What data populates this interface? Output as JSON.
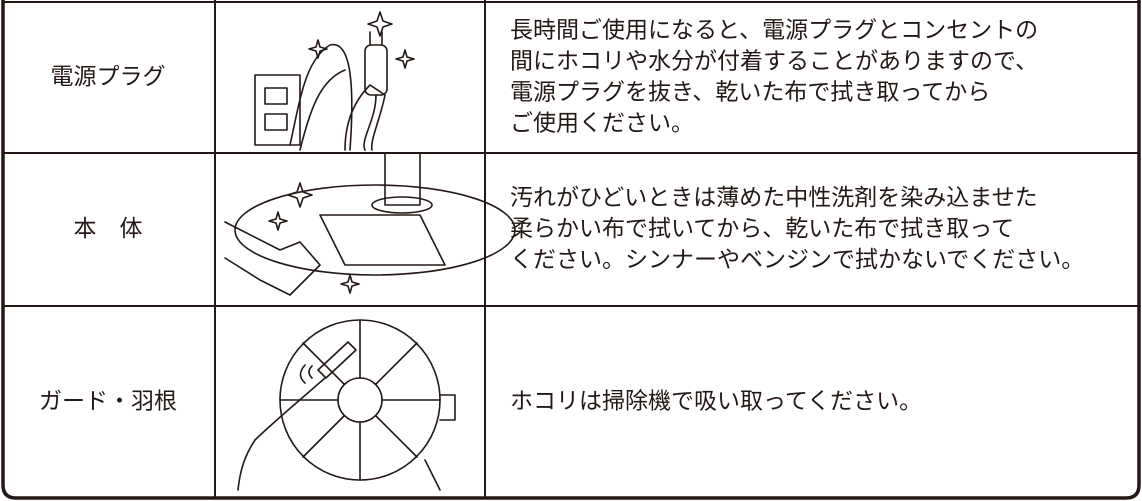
{
  "table": {
    "rows": [
      {
        "label": "電源プラグ",
        "lines": [
          "長時間ご使用になると、電源プラグとコンセントの",
          "間にホコリや水分が付着することがありますので、",
          "電源プラグを抜き、乾いた布で拭き取ってから",
          "ご使用ください。"
        ]
      },
      {
        "label": "本　体",
        "lines": [
          "汚れがひどいときは薄めた中性洗剤を染み込ませた",
          "柔らかい布で拭いてから、乾いた布で拭き取って",
          "ください。シンナーやベンジンで拭かないでください。"
        ]
      },
      {
        "label": "ガード・羽根",
        "lines": [
          "ホコリは掃除機で吸い取ってください。"
        ]
      }
    ]
  }
}
